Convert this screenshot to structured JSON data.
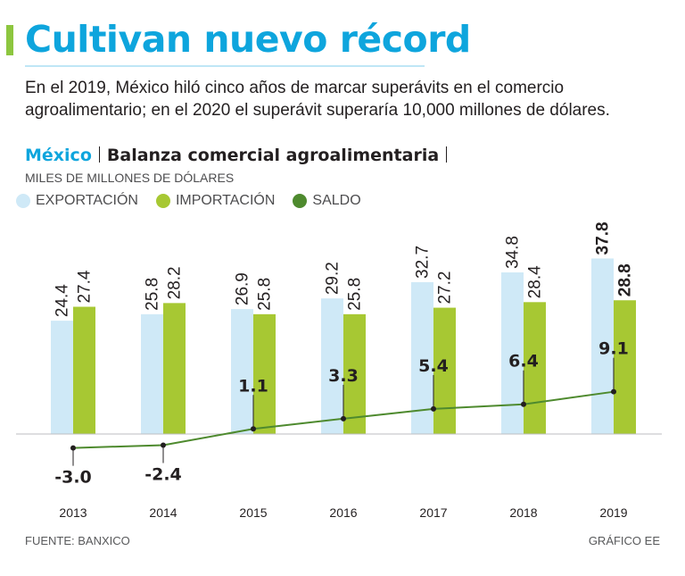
{
  "header": {
    "title": "Cultivan nuevo récord",
    "subtitle": "En el 2019, México hiló cinco años de marcar superávits en el comercio agroalimentario; en el 2020 el superávit superaría 10,000 millones de dólares."
  },
  "chart_header": {
    "country": "México",
    "title": "Balanza comercial agroalimentaria",
    "units": "MILES DE MILLONES DE DÓLARES"
  },
  "legend": [
    {
      "label": "EXPORTACIÓN",
      "color": "#cfe9f7"
    },
    {
      "label": "IMPORTACIÓN",
      "color": "#a7c833"
    },
    {
      "label": "SALDO",
      "color": "#4e8a2e"
    }
  ],
  "footer": {
    "source": "FUENTE: BANXICO",
    "credit": "GRÁFICO EE"
  },
  "chart_data": {
    "type": "bar",
    "categories": [
      "2013",
      "2014",
      "2015",
      "2016",
      "2017",
      "2018",
      "2019"
    ],
    "series": [
      {
        "name": "EXPORTACIÓN",
        "type": "bar",
        "color": "#cfe9f7",
        "values": [
          24.4,
          25.8,
          26.9,
          29.2,
          32.7,
          34.8,
          37.8
        ],
        "labels": [
          "24.4",
          "25.8",
          "26.9",
          "29.2",
          "32.7",
          "34.8",
          "37.8"
        ]
      },
      {
        "name": "IMPORTACIÓN",
        "type": "bar",
        "color": "#a7c833",
        "values": [
          27.4,
          28.2,
          25.8,
          25.8,
          27.2,
          28.4,
          28.8
        ],
        "labels": [
          "27.4",
          "28.2",
          "25.8",
          "25.8",
          "27.2",
          "28.4",
          "28.8"
        ]
      },
      {
        "name": "SALDO",
        "type": "line",
        "color": "#4e8a2e",
        "values": [
          -3.0,
          -2.4,
          1.1,
          3.3,
          5.4,
          6.4,
          9.1
        ],
        "labels": [
          "-3.0",
          "-2.4",
          "1.1",
          "3.3",
          "5.4",
          "6.4",
          "9.1"
        ]
      }
    ],
    "ylim": [
      -5,
      40
    ],
    "grid": false,
    "legend_position": "top-left"
  }
}
